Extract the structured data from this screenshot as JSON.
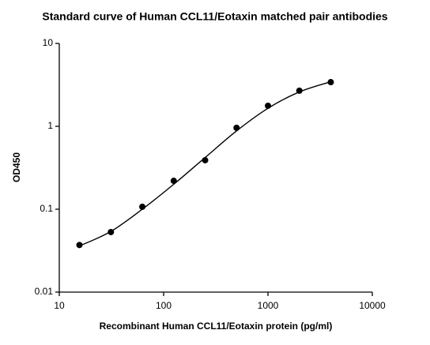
{
  "chart_data": {
    "type": "scatter",
    "title": "Standard curve of Human CCL11/Eotaxin matched pair antibodies",
    "x_label": "Recombinant Human CCL11/Eotaxin protein (pg/ml)",
    "y_label": "OD450",
    "xscale": "log",
    "yscale": "log",
    "xlim": [
      10,
      10000
    ],
    "xticks": [
      10,
      100,
      1000,
      10000
    ],
    "ylim": [
      0.01,
      10
    ],
    "yticks": [
      10,
      1,
      0.1,
      0.01
    ],
    "color": "#000000",
    "x": [
      15.6,
      31.25,
      62.5,
      125,
      250,
      500,
      1000,
      2000,
      4000
    ],
    "values": [
      0.037,
      0.053,
      0.107,
      0.22,
      0.39,
      0.96,
      1.77,
      2.69,
      3.41
    ],
    "fit": {
      "x": [
        15.6,
        31.25,
        62.5,
        125,
        250,
        500,
        1000,
        2000,
        4000
      ],
      "values": [
        0.036,
        0.054,
        0.1,
        0.2,
        0.42,
        0.88,
        1.65,
        2.6,
        3.45
      ]
    }
  }
}
